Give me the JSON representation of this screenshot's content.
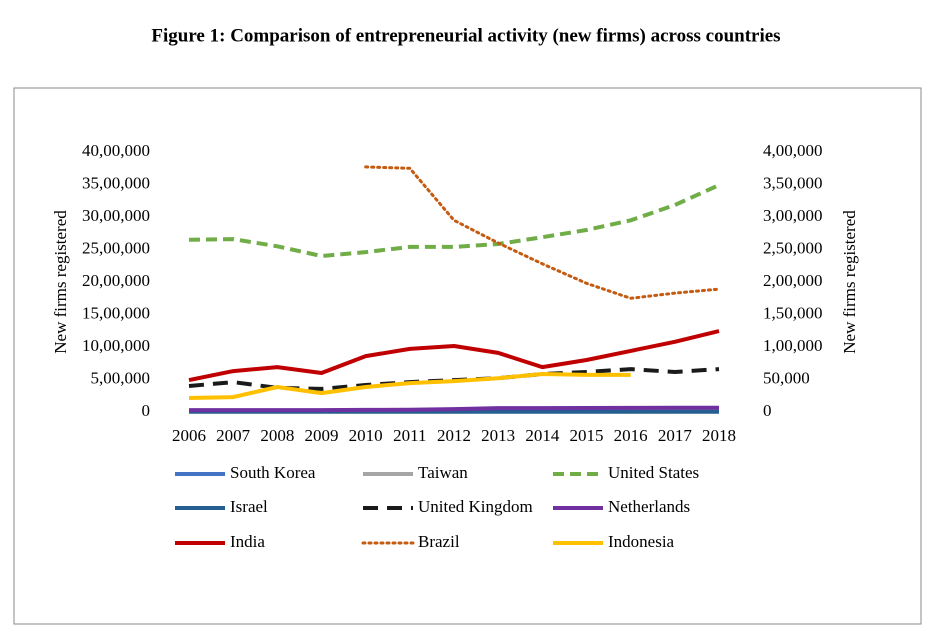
{
  "chart_data": {
    "type": "line",
    "title": "Figure 1: Comparison of entrepreneurial activity (new firms) across countries",
    "ylabel": "New firms registered",
    "y2label": "New firms registered",
    "categories": [
      "2006",
      "2007",
      "2008",
      "2009",
      "2010",
      "2011",
      "2012",
      "2013",
      "2014",
      "2015",
      "2016",
      "2017",
      "2018"
    ],
    "ylim": [
      0,
      4000000
    ],
    "yticks": [
      0,
      {
        "value": 500000,
        "label": "5,00,000"
      },
      {
        "value": 1000000,
        "label": "10,00,000"
      },
      {
        "value": 1500000,
        "label": "15,00,000"
      },
      {
        "value": 2000000,
        "label": "20,00,000"
      },
      {
        "value": 2500000,
        "label": "25,00,000"
      },
      {
        "value": 3000000,
        "label": "30,00,000"
      },
      {
        "value": 3500000,
        "label": "35,00,000"
      },
      {
        "value": 4000000,
        "label": "40,00,000"
      }
    ],
    "y2lim": [
      0,
      400000
    ],
    "y2ticks": [
      0,
      {
        "value": 50000,
        "label": "50,000"
      },
      {
        "value": 100000,
        "label": "1,00,000"
      },
      {
        "value": 150000,
        "label": "1,50,000"
      },
      {
        "value": 200000,
        "label": "2,00,000"
      },
      {
        "value": 250000,
        "label": "2,50,000"
      },
      {
        "value": 300000,
        "label": "3,00,000"
      },
      {
        "value": 350000,
        "label": "3,50,000"
      },
      {
        "value": 400000,
        "label": "4,00,000"
      }
    ],
    "series": [
      {
        "name": "South Korea",
        "color": "#4472c4",
        "style": "solid",
        "values": [
          15000,
          15000,
          15000,
          15000,
          16000,
          17000,
          18000,
          18000,
          18000,
          18000,
          19000,
          19000,
          19000
        ]
      },
      {
        "name": "Taiwan",
        "color": "#a5a5a5",
        "style": "solid",
        "values": [
          10000,
          10000,
          10000,
          10000,
          10000,
          10000,
          10000,
          10000,
          10000,
          10000,
          10000,
          10000,
          10000
        ]
      },
      {
        "name": "United States",
        "color": "#70ad47",
        "style": "dashed",
        "values": [
          2650000,
          2660000,
          2550000,
          2400000,
          2460000,
          2540000,
          2540000,
          2585000,
          2690000,
          2800000,
          2950000,
          3185000,
          3490000
        ]
      },
      {
        "name": "Israel",
        "color": "#255e91",
        "style": "solid",
        "values": [
          5000,
          5000,
          5000,
          5000,
          5000,
          5000,
          5000,
          5000,
          5000,
          5000,
          5000,
          5000,
          5000
        ]
      },
      {
        "name": "United Kingdom",
        "color": "#1a1a1a",
        "style": "longdash",
        "values": [
          400000,
          460000,
          370000,
          355000,
          415000,
          460000,
          490000,
          520000,
          585000,
          615000,
          660000,
          615000,
          660000
        ]
      },
      {
        "name": "Netherlands",
        "color": "#7030a0",
        "style": "solid",
        "values": [
          30000,
          30000,
          30000,
          30000,
          32000,
          35000,
          45000,
          60000,
          60000,
          62000,
          63000,
          64000,
          65000
        ]
      },
      {
        "name": "India",
        "color": "#c00000",
        "style": "solid",
        "axis": "y2",
        "values": [
          49000,
          63000,
          69000,
          60000,
          86000,
          97000,
          101500,
          91000,
          69000,
          80000,
          94000,
          108000,
          124500
        ]
      },
      {
        "name": "Brazil",
        "color": "#c55a11",
        "style": "dotted",
        "axis": "y2",
        "values": [
          null,
          null,
          null,
          null,
          377000,
          375000,
          295000,
          260000,
          228000,
          198000,
          175000,
          183000,
          189000
        ]
      },
      {
        "name": "Indonesia",
        "color": "#ffc000",
        "style": "solid",
        "axis": "y2",
        "values": [
          21500,
          23000,
          38500,
          29000,
          38500,
          44500,
          47500,
          52000,
          58500,
          57000,
          57000,
          null,
          null
        ]
      }
    ]
  }
}
